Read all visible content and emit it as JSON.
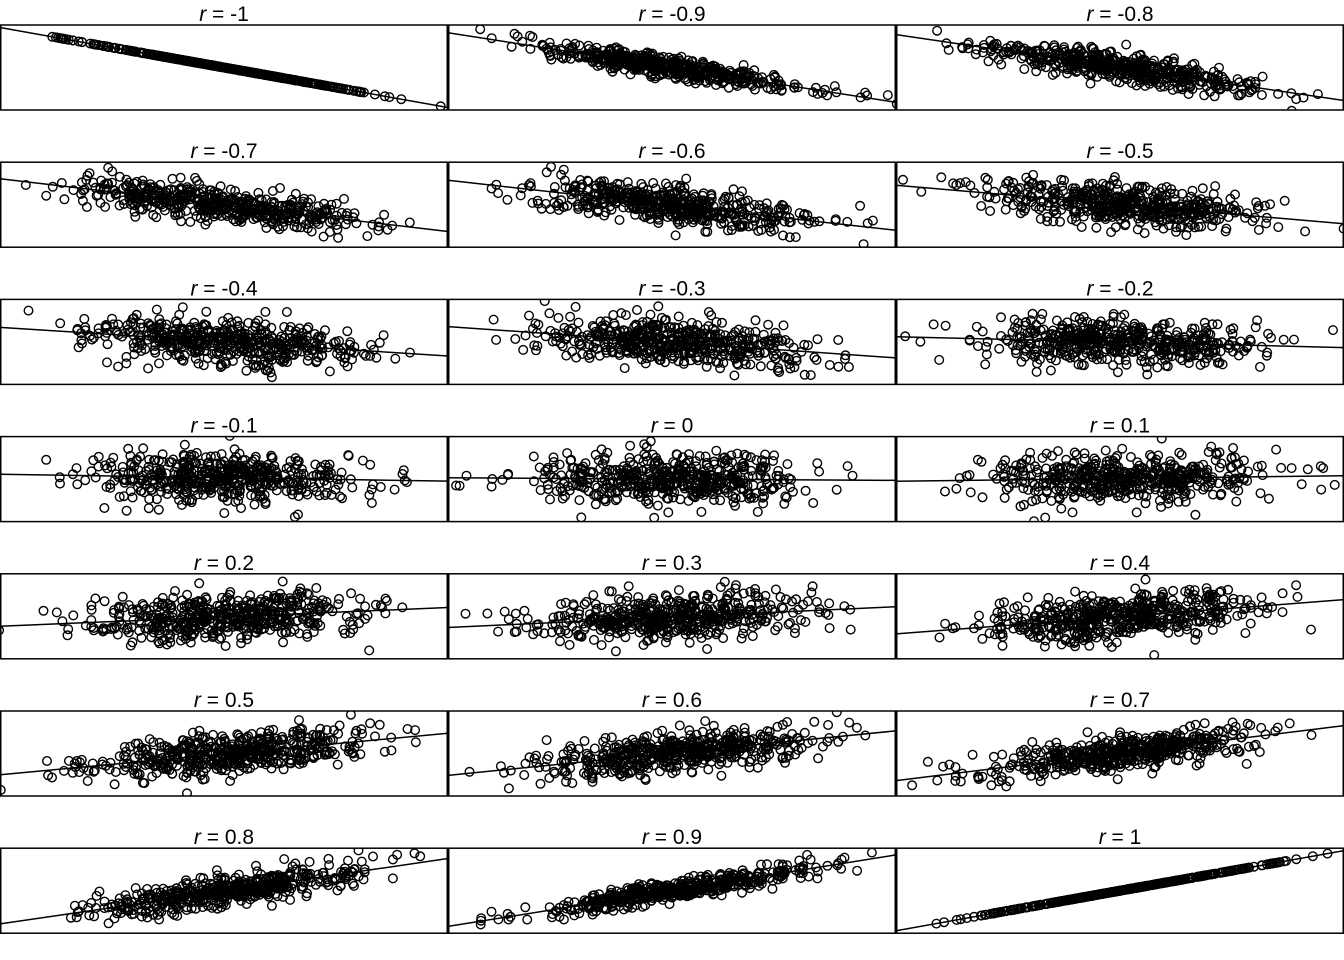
{
  "chart_data": {
    "type": "scatter",
    "layout": {
      "rows": 7,
      "cols": 3
    },
    "axes": {
      "shown": false,
      "tick_labels": false
    },
    "grid": false,
    "legend": "none",
    "point_marker": "open-circle",
    "points_per_panel": 500,
    "x_distribution": "standard-normal",
    "fit_line": "least-squares",
    "panels": [
      {
        "label_prefix": "r",
        "label_value": "-1",
        "r": -1.0
      },
      {
        "label_prefix": "r",
        "label_value": "-0.9",
        "r": -0.9
      },
      {
        "label_prefix": "r",
        "label_value": "-0.8",
        "r": -0.8
      },
      {
        "label_prefix": "r",
        "label_value": "-0.7",
        "r": -0.7
      },
      {
        "label_prefix": "r",
        "label_value": "-0.6",
        "r": -0.6
      },
      {
        "label_prefix": "r",
        "label_value": "-0.5",
        "r": -0.5
      },
      {
        "label_prefix": "r",
        "label_value": "-0.4",
        "r": -0.4
      },
      {
        "label_prefix": "r",
        "label_value": "-0.3",
        "r": -0.3
      },
      {
        "label_prefix": "r",
        "label_value": "-0.2",
        "r": -0.2
      },
      {
        "label_prefix": "r",
        "label_value": "-0.1",
        "r": -0.1
      },
      {
        "label_prefix": "r",
        "label_value": "0",
        "r": 0.0
      },
      {
        "label_prefix": "r",
        "label_value": "0.1",
        "r": 0.1
      },
      {
        "label_prefix": "r",
        "label_value": "0.2",
        "r": 0.2
      },
      {
        "label_prefix": "r",
        "label_value": "0.3",
        "r": 0.3
      },
      {
        "label_prefix": "r",
        "label_value": "0.4",
        "r": 0.4
      },
      {
        "label_prefix": "r",
        "label_value": "0.5",
        "r": 0.5
      },
      {
        "label_prefix": "r",
        "label_value": "0.6",
        "r": 0.6
      },
      {
        "label_prefix": "r",
        "label_value": "0.7",
        "r": 0.7
      },
      {
        "label_prefix": "r",
        "label_value": "0.8",
        "r": 0.8
      },
      {
        "label_prefix": "r",
        "label_value": "0.9",
        "r": 0.9
      },
      {
        "label_prefix": "r",
        "label_value": "1",
        "r": 1.0
      }
    ]
  }
}
